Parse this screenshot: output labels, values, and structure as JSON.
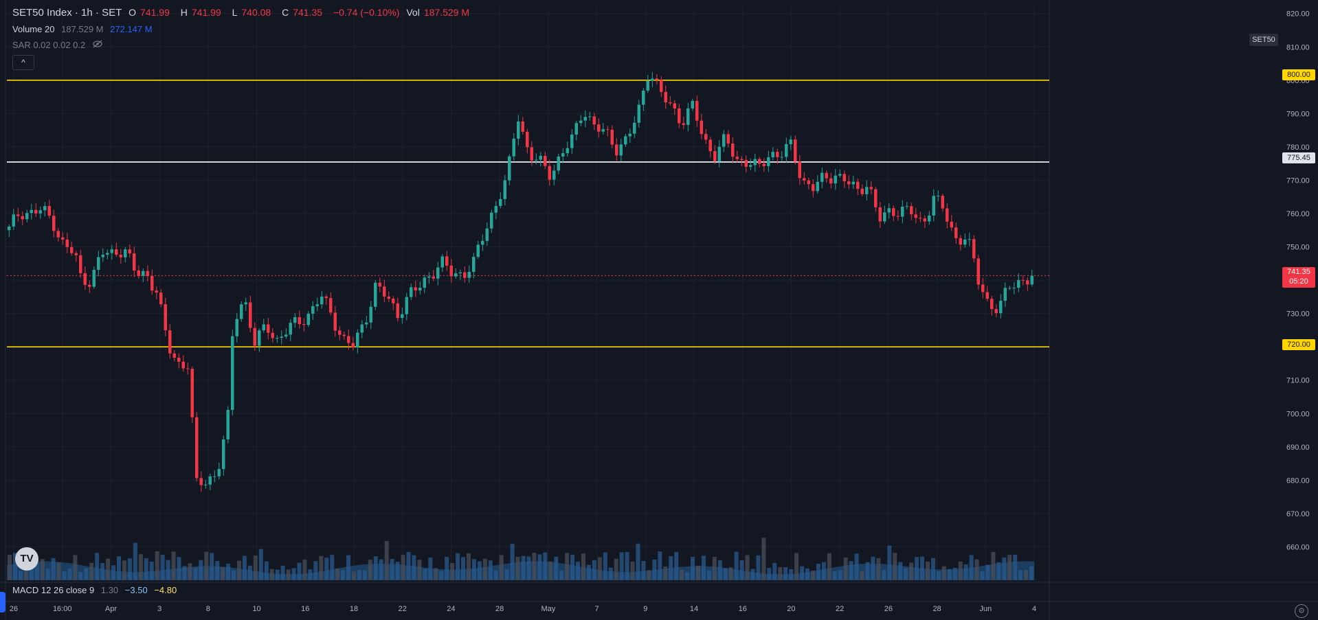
{
  "legend": {
    "symbol": "SET50 Index · 1h · SET",
    "o_label": "O",
    "o_value": "741.99",
    "h_label": "H",
    "h_value": "741.99",
    "l_label": "L",
    "l_value": "740.08",
    "c_label": "C",
    "c_value": "741.35",
    "change": "−0.74 (−0.10%)",
    "vol_label": "Vol",
    "vol_value": "187.529 M",
    "volume_label": "Volume 20",
    "volume_value": "187.529 M",
    "volume_ma": "272.147 M",
    "sar_label": "SAR 0.02 0.02 0.2",
    "collapse_glyph": "^"
  },
  "macd_legend": {
    "label": "MACD 12 26 close 9",
    "hist": "1.30",
    "macd": "−3.50",
    "signal": "−4.80"
  },
  "badges": {
    "symbol_tag": "SET50",
    "last_price": "741.35",
    "countdown": "05:20",
    "logo": "TV"
  },
  "hlines": [
    {
      "value": 800,
      "label": "800.00",
      "color": "#ffd600"
    },
    {
      "value": 775.45,
      "label": "775.45",
      "color": "#ffffff"
    },
    {
      "value": 720,
      "label": "720.00",
      "color": "#ffd600"
    }
  ],
  "colors": {
    "up": "#26a69a",
    "down": "#f23645",
    "volume": "#2a5a8c",
    "volume_area": "#1e4f7a",
    "grid": "#1e222d"
  },
  "icons": {
    "visibility": "eye-off-icon",
    "settings": "gear-icon",
    "logo": "tradingview-logo-icon"
  },
  "chart_data": {
    "type": "candlestick",
    "title": "SET50 Index · 1h · SET",
    "ylim": [
      650,
      822
    ],
    "yticks": [
      820,
      810,
      800,
      790,
      780,
      770,
      760,
      750,
      740,
      730,
      720,
      710,
      700,
      690,
      680,
      670,
      660
    ],
    "xticks": [
      "26",
      "16:00",
      "Apr",
      "3",
      "8",
      "10",
      "16",
      "18",
      "22",
      "24",
      "28",
      "May",
      "7",
      "9",
      "14",
      "16",
      "20",
      "22",
      "26",
      "28",
      "Jun",
      "4"
    ],
    "last_close": 741.35,
    "series": [
      {
        "name": "Volume 20",
        "values": [
          "187.529 M",
          "272.147 M"
        ]
      }
    ],
    "price_path": [
      [
        0,
        755
      ],
      [
        2,
        761
      ],
      [
        4,
        760
      ],
      [
        6,
        761
      ],
      [
        8,
        758
      ],
      [
        10,
        750
      ],
      [
        12,
        748
      ],
      [
        13,
        741
      ],
      [
        15,
        740
      ],
      [
        17,
        748
      ],
      [
        19,
        748
      ],
      [
        21,
        750
      ],
      [
        23,
        742
      ],
      [
        25,
        742
      ],
      [
        27,
        737
      ],
      [
        29,
        720
      ],
      [
        31,
        715
      ],
      [
        33,
        715
      ],
      [
        34,
        678
      ],
      [
        36,
        680
      ],
      [
        38,
        682
      ],
      [
        40,
        698
      ],
      [
        41,
        728
      ],
      [
        43,
        735
      ],
      [
        45,
        720
      ],
      [
        47,
        727
      ],
      [
        49,
        722
      ],
      [
        51,
        725
      ],
      [
        53,
        728
      ],
      [
        55,
        730
      ],
      [
        57,
        735
      ],
      [
        59,
        730
      ],
      [
        61,
        722
      ],
      [
        63,
        720
      ],
      [
        65,
        728
      ],
      [
        67,
        738
      ],
      [
        69,
        735
      ],
      [
        71,
        730
      ],
      [
        73,
        735
      ],
      [
        75,
        738
      ],
      [
        77,
        742
      ],
      [
        79,
        745
      ],
      [
        81,
        742
      ],
      [
        83,
        742
      ],
      [
        85,
        745
      ],
      [
        87,
        755
      ],
      [
        89,
        763
      ],
      [
        91,
        770
      ],
      [
        93,
        790
      ],
      [
        95,
        778
      ],
      [
        97,
        775
      ],
      [
        99,
        772
      ],
      [
        101,
        778
      ],
      [
        103,
        782
      ],
      [
        105,
        792
      ],
      [
        107,
        786
      ],
      [
        109,
        784
      ],
      [
        111,
        780
      ],
      [
        113,
        782
      ],
      [
        115,
        790
      ],
      [
        117,
        804
      ],
      [
        119,
        796
      ],
      [
        121,
        792
      ],
      [
        123,
        788
      ],
      [
        125,
        792
      ],
      [
        127,
        782
      ],
      [
        129,
        778
      ],
      [
        131,
        782
      ],
      [
        133,
        776
      ],
      [
        135,
        776
      ],
      [
        137,
        773
      ],
      [
        139,
        778
      ],
      [
        141,
        778
      ],
      [
        143,
        780
      ],
      [
        145,
        770
      ],
      [
        147,
        768
      ],
      [
        149,
        770
      ],
      [
        151,
        772
      ],
      [
        153,
        770
      ],
      [
        155,
        766
      ],
      [
        157,
        770
      ],
      [
        159,
        758
      ],
      [
        161,
        760
      ],
      [
        163,
        762
      ],
      [
        165,
        760
      ],
      [
        167,
        756
      ],
      [
        169,
        766
      ],
      [
        171,
        760
      ],
      [
        173,
        752
      ],
      [
        175,
        754
      ],
      [
        176,
        748
      ],
      [
        177,
        740
      ],
      [
        179,
        733
      ],
      [
        181,
        732
      ],
      [
        183,
        738
      ],
      [
        185,
        740
      ],
      [
        187,
        741.35
      ]
    ]
  }
}
